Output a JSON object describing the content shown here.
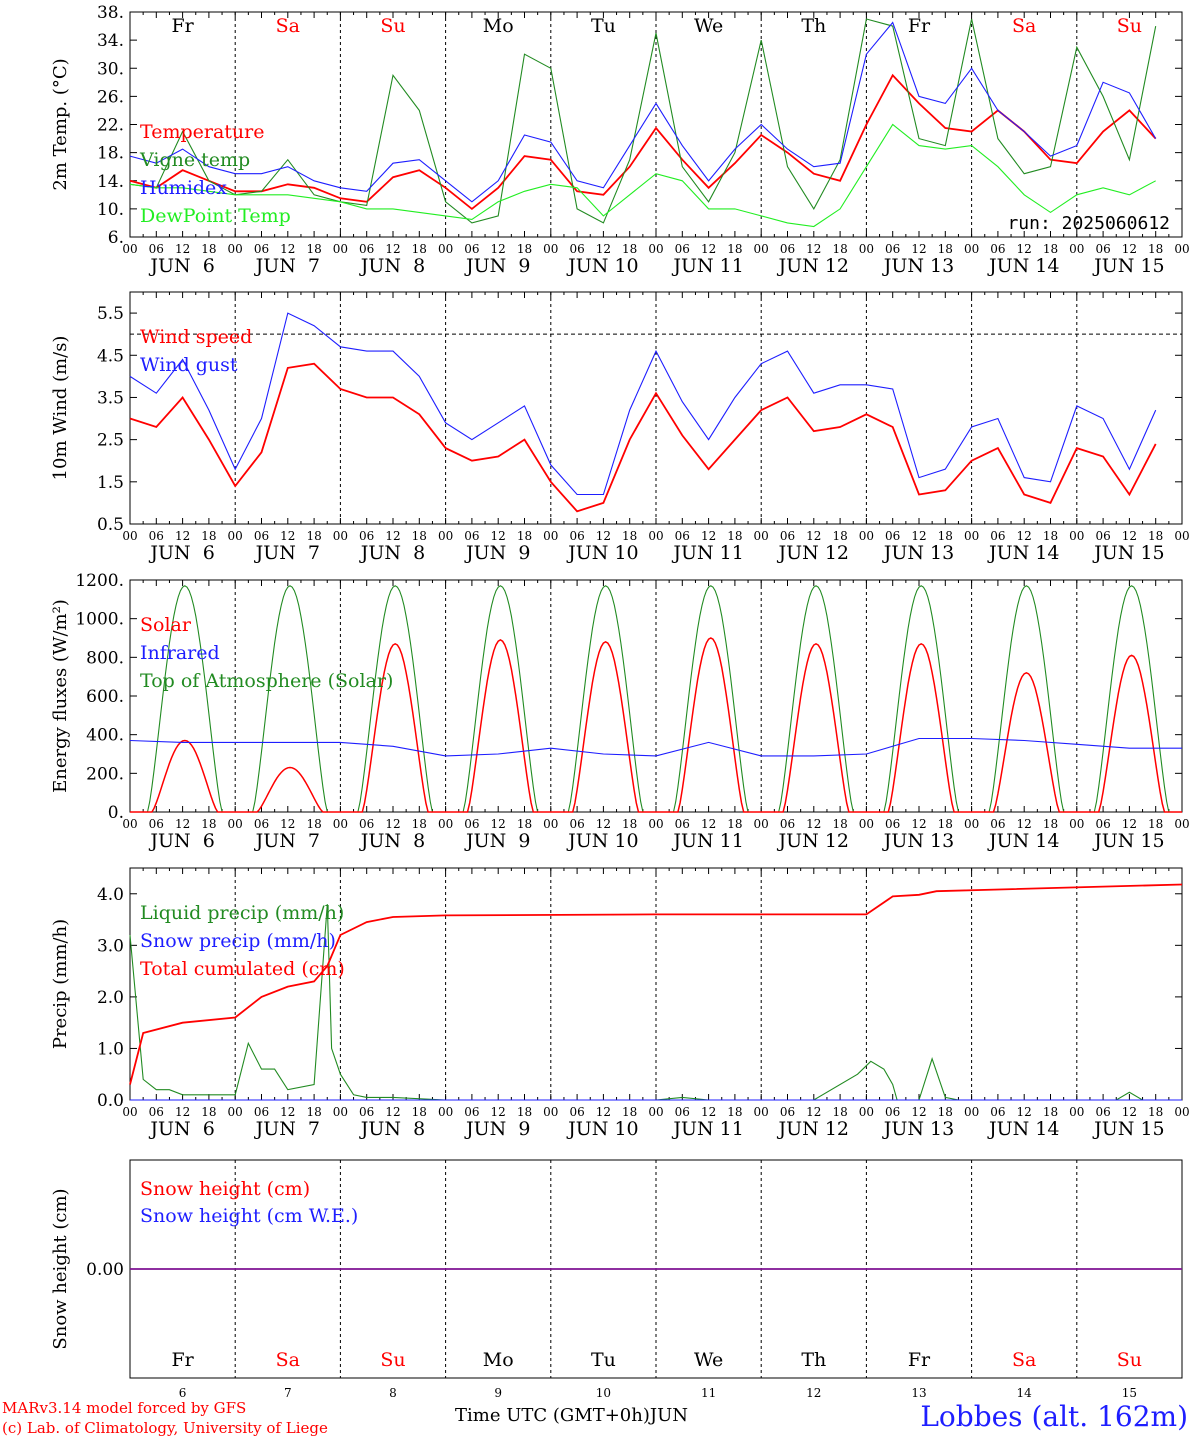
{
  "footer": {
    "model": "MARv3.14 model forced by GFS",
    "credit": "(c) Lab. of Climatology, University of Liege",
    "xlabel": "Time UTC (GMT+0h)",
    "month": "JUN",
    "station": "Lobbes (alt. 162m)"
  },
  "days": {
    "names": [
      "Fr",
      "Sa",
      "Su",
      "Mo",
      "Tu",
      "We",
      "Th",
      "Fr",
      "Sa",
      "Su"
    ],
    "weekend": [
      false,
      true,
      true,
      false,
      false,
      false,
      false,
      false,
      true,
      true
    ],
    "labels": [
      "JUN  6",
      "JUN  7",
      "JUN  8",
      "JUN  9",
      "JUN 10",
      "JUN 11",
      "JUN 12",
      "JUN 13",
      "JUN 14",
      "JUN 15"
    ],
    "numbers": [
      "6",
      "7",
      "8",
      "9",
      "10",
      "11",
      "12",
      "13",
      "14",
      "15"
    ],
    "hour_ticks": [
      "00",
      "06",
      "12",
      "18"
    ],
    "end_tick": "00"
  },
  "colors": {
    "red": "#ff0000",
    "green": "#228b22",
    "blue": "#1e1eff",
    "lightgreen": "#22ee22",
    "black": "#000000"
  },
  "chart_data": [
    {
      "type": "line",
      "ylabel": "2m Temp. (°C)",
      "ylim": [
        6,
        38
      ],
      "yticks": [
        "38.",
        "34.",
        "30.",
        "26.",
        "22.",
        "18.",
        "14.",
        "10.",
        "6."
      ],
      "ytick_values": [
        38,
        34,
        30,
        26,
        22,
        18,
        14,
        10,
        6
      ],
      "run_label": "run: 2025060612",
      "x_unit": "hours since JUN 6 00 UTC",
      "series": [
        {
          "name": "Temperature",
          "color": "red",
          "x": [
            0,
            6,
            12,
            18,
            24,
            30,
            36,
            42,
            48,
            54,
            60,
            66,
            72,
            78,
            84,
            90,
            96,
            102,
            108,
            114,
            120,
            126,
            132,
            138,
            144,
            150,
            156,
            162,
            168,
            174,
            180,
            186,
            192,
            198,
            204,
            210,
            216,
            222,
            228,
            234
          ],
          "values": [
            14,
            13,
            15.5,
            14,
            12.5,
            12.5,
            13.5,
            13,
            11.5,
            11,
            14.5,
            15.5,
            13,
            10,
            13,
            17.5,
            17,
            12.5,
            12,
            16,
            21.5,
            17,
            13,
            16.5,
            20.5,
            18,
            15,
            14,
            22,
            29,
            25,
            21.5,
            21,
            24,
            21,
            17,
            16.5,
            21,
            24,
            20
          ]
        },
        {
          "name": "Vigne temp",
          "color": "green",
          "x": [
            0,
            6,
            12,
            18,
            24,
            30,
            36,
            42,
            48,
            54,
            60,
            66,
            72,
            78,
            84,
            90,
            96,
            102,
            108,
            114,
            120,
            126,
            132,
            138,
            144,
            150,
            156,
            162,
            168,
            174,
            180,
            186,
            192,
            198,
            204,
            210,
            216,
            222,
            228,
            234
          ],
          "values": [
            13.5,
            13,
            21,
            14,
            12,
            12.5,
            17,
            12,
            11,
            10.5,
            29,
            24,
            11,
            8,
            9,
            32,
            30,
            10,
            8,
            17,
            35,
            16,
            11,
            18,
            34,
            16,
            10,
            17,
            37,
            36,
            20,
            19,
            37,
            20,
            15,
            16,
            33,
            26,
            17,
            36
          ]
        },
        {
          "name": "Humidex",
          "color": "blue",
          "x": [
            0,
            6,
            12,
            18,
            24,
            30,
            36,
            42,
            48,
            54,
            60,
            66,
            72,
            78,
            84,
            90,
            96,
            102,
            108,
            114,
            120,
            126,
            132,
            138,
            144,
            150,
            156,
            162,
            168,
            174,
            180,
            186,
            192,
            198,
            204,
            210,
            216,
            222,
            228,
            234
          ],
          "values": [
            17.5,
            16.5,
            18.5,
            16,
            15,
            15,
            16,
            14,
            13,
            12.5,
            16.5,
            17,
            14,
            11,
            14,
            20.5,
            19.5,
            14,
            13,
            19,
            25,
            19,
            14,
            18.5,
            22,
            18.5,
            16,
            16.5,
            32,
            36.5,
            26,
            25,
            30,
            24,
            21,
            17.5,
            19,
            28,
            26.5,
            20
          ]
        },
        {
          "name": "DewPoint Temp",
          "color": "lightgreen",
          "x": [
            0,
            6,
            12,
            18,
            24,
            30,
            36,
            42,
            48,
            54,
            60,
            66,
            72,
            78,
            84,
            90,
            96,
            102,
            108,
            114,
            120,
            126,
            132,
            138,
            144,
            150,
            156,
            162,
            168,
            174,
            180,
            186,
            192,
            198,
            204,
            210,
            216,
            222,
            228,
            234
          ],
          "values": [
            13.5,
            13,
            13,
            12.5,
            12,
            12,
            12,
            11.5,
            11,
            10,
            10,
            9.5,
            9,
            8.5,
            11,
            12.5,
            13.5,
            13,
            9,
            12,
            15,
            14,
            10,
            10,
            9,
            8,
            7.5,
            10,
            16,
            22,
            19,
            18.5,
            19,
            16,
            12,
            9.5,
            12,
            13,
            12,
            14
          ]
        }
      ]
    },
    {
      "type": "line",
      "ylabel": "10m Wind (m/s)",
      "ylim": [
        0.5,
        6.0
      ],
      "yticks": [
        "5.5",
        "4.5",
        "3.5",
        "2.5",
        "1.5",
        "0.5"
      ],
      "ytick_values": [
        5.5,
        4.5,
        3.5,
        2.5,
        1.5,
        0.5
      ],
      "ref_line": 5.0,
      "x_unit": "hours since JUN 6 00 UTC",
      "series": [
        {
          "name": "Wind speed",
          "color": "red",
          "x": [
            0,
            6,
            12,
            18,
            24,
            30,
            36,
            42,
            48,
            54,
            60,
            66,
            72,
            78,
            84,
            90,
            96,
            102,
            108,
            114,
            120,
            126,
            132,
            138,
            144,
            150,
            156,
            162,
            168,
            174,
            180,
            186,
            192,
            198,
            204,
            210,
            216,
            222,
            228,
            234
          ],
          "values": [
            3,
            2.8,
            3.5,
            2.5,
            1.4,
            2.2,
            4.2,
            4.3,
            3.7,
            3.5,
            3.5,
            3.1,
            2.3,
            2.0,
            2.1,
            2.5,
            1.5,
            0.8,
            1.0,
            2.5,
            3.6,
            2.6,
            1.8,
            2.5,
            3.2,
            3.5,
            2.7,
            2.8,
            3.1,
            2.8,
            1.2,
            1.3,
            2.0,
            2.3,
            1.2,
            1.0,
            2.3,
            2.1,
            1.2,
            2.4
          ]
        },
        {
          "name": "Wind gust",
          "color": "blue",
          "x": [
            0,
            6,
            12,
            18,
            24,
            30,
            36,
            42,
            48,
            54,
            60,
            66,
            72,
            78,
            84,
            90,
            96,
            102,
            108,
            114,
            120,
            126,
            132,
            138,
            144,
            150,
            156,
            162,
            168,
            174,
            180,
            186,
            192,
            198,
            204,
            210,
            216,
            222,
            228,
            234
          ],
          "values": [
            4.0,
            3.6,
            4.4,
            3.2,
            1.8,
            3.0,
            5.5,
            5.2,
            4.7,
            4.6,
            4.6,
            4.0,
            2.9,
            2.5,
            2.9,
            3.3,
            1.9,
            1.2,
            1.2,
            3.2,
            4.6,
            3.4,
            2.5,
            3.5,
            4.3,
            4.6,
            3.6,
            3.8,
            3.8,
            3.7,
            1.6,
            1.8,
            2.8,
            3.0,
            1.6,
            1.5,
            3.3,
            3.0,
            1.8,
            3.2
          ]
        }
      ]
    },
    {
      "type": "line",
      "ylabel": "Energy fluxes (W/m²)",
      "ylim": [
        0,
        1200
      ],
      "yticks": [
        "1200.",
        "1000.",
        "800.",
        "600.",
        "400.",
        "200.",
        "0."
      ],
      "ytick_values": [
        1200,
        1000,
        800,
        600,
        400,
        200,
        0
      ],
      "x_unit": "hours since JUN 6 00 UTC",
      "day_peak": {
        "toa": [
          1170,
          1170,
          1170,
          1170,
          1170,
          1170,
          1170,
          1170,
          1170,
          1170
        ],
        "solar": [
          370,
          230,
          870,
          890,
          880,
          900,
          870,
          870,
          720,
          810
        ]
      },
      "series": [
        {
          "name": "Solar",
          "color": "red"
        },
        {
          "name": "Infrared",
          "color": "blue",
          "x": [
            0,
            12,
            24,
            36,
            48,
            60,
            72,
            84,
            96,
            108,
            120,
            132,
            144,
            156,
            168,
            180,
            192,
            204,
            216,
            228,
            240
          ],
          "values": [
            370,
            360,
            360,
            360,
            360,
            340,
            290,
            300,
            330,
            300,
            290,
            360,
            290,
            290,
            300,
            380,
            380,
            370,
            350,
            330,
            330
          ]
        },
        {
          "name": "Top of Atmosphere (Solar)",
          "color": "green"
        }
      ]
    },
    {
      "type": "line",
      "ylabel": "Precip (mm/h)",
      "ylim": [
        0,
        4.5
      ],
      "yticks": [
        "4.0",
        "3.0",
        "2.0",
        "1.0",
        "0.0"
      ],
      "ytick_values": [
        4,
        3,
        2,
        1,
        0
      ],
      "x_unit": "hours since JUN 6 00 UTC",
      "series": [
        {
          "name": "Liquid precip (mm/h)",
          "color": "green",
          "x": [
            0,
            3,
            6,
            9,
            12,
            18,
            24,
            27,
            30,
            33,
            36,
            42,
            45,
            46,
            48,
            51,
            54,
            60,
            72,
            84,
            96,
            120,
            126,
            132,
            156,
            166,
            169,
            172,
            174,
            175,
            180,
            183,
            186,
            189,
            204,
            225,
            228,
            231,
            240
          ],
          "values": [
            3.2,
            0.4,
            0.2,
            0.2,
            0.1,
            0.1,
            0.1,
            1.1,
            0.6,
            0.6,
            0.2,
            0.3,
            3.8,
            1.0,
            0.5,
            0.1,
            0.05,
            0.05,
            0,
            0,
            0,
            0,
            0.05,
            0,
            0,
            0.5,
            0.75,
            0.6,
            0.3,
            0,
            0,
            0.8,
            0.05,
            0,
            0,
            0,
            0.15,
            0,
            0
          ]
        },
        {
          "name": "Snow precip (mm/h)",
          "color": "blue",
          "x": [
            0,
            240
          ],
          "values": [
            0,
            0
          ]
        },
        {
          "name": "Total cumulated (cm)",
          "color": "red",
          "x": [
            0,
            3,
            12,
            24,
            30,
            36,
            42,
            45,
            48,
            54,
            60,
            72,
            120,
            168,
            174,
            180,
            184,
            240
          ],
          "values": [
            0.3,
            1.3,
            1.5,
            1.6,
            2.0,
            2.2,
            2.3,
            2.6,
            3.2,
            3.45,
            3.55,
            3.58,
            3.6,
            3.6,
            3.95,
            3.98,
            4.05,
            4.18
          ]
        }
      ]
    },
    {
      "type": "line",
      "ylabel": "Snow height (cm)",
      "ylim": [
        -1,
        1
      ],
      "yticks": [
        "0.00"
      ],
      "ytick_values": [
        0
      ],
      "x_unit": "hours since JUN 6 00 UTC",
      "series": [
        {
          "name": "Snow height (cm)",
          "color": "red",
          "x": [
            0,
            240
          ],
          "values": [
            0,
            0
          ]
        },
        {
          "name": "Snow height (cm W.E.)",
          "color": "blue",
          "x": [
            0,
            240
          ],
          "values": [
            0,
            0
          ]
        }
      ]
    }
  ]
}
